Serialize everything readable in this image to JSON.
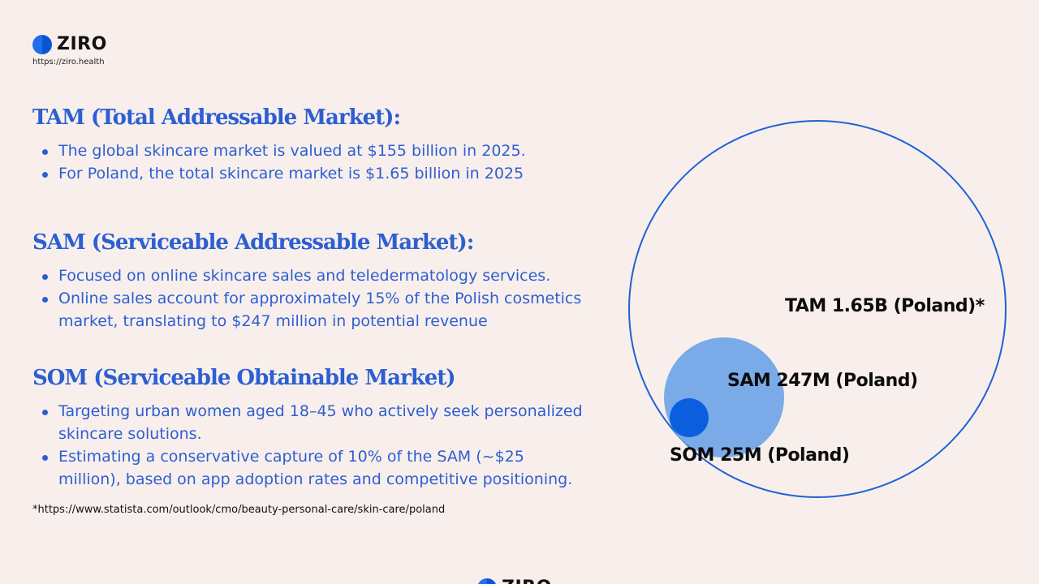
{
  "brand": {
    "name": "ZIRO",
    "url": "https://ziro.health",
    "logo_icon": "ziro-logo-icon",
    "colors": {
      "primary": "#2d5fd0",
      "circle_outline": "#1d63d3",
      "sam_fill": "#7aaae8",
      "som_fill": "#0b5fde"
    }
  },
  "sections": {
    "tam": {
      "heading": "TAM (Total Addressable Market):",
      "bullets": [
        "The global skincare market is valued at $155 billion in 2025.",
        "For Poland, the total skincare market is $1.65 billion in 2025"
      ]
    },
    "sam": {
      "heading": "SAM (Serviceable Addressable Market):",
      "bullets": [
        "Focused on online skincare sales and teledermatology services.",
        "Online sales account for approximately 15% of the Polish cosmetics market, translating to $247 million in potential revenue"
      ]
    },
    "som": {
      "heading": "SOM (Serviceable Obtainable Market)",
      "bullets": [
        "Targeting urban women aged 18–45 who actively seek personalized skincare solutions.",
        "Estimating a conservative capture of 10% of the SAM (~$25 million), based on app adoption rates and competitive positioning."
      ]
    }
  },
  "footnote": "*https://www.statista.com/outlook/cmo/beauty-personal-care/skin-care/poland",
  "diagram": {
    "tam_label": "TAM 1.65B (Poland)*",
    "sam_label": "SAM 247M (Poland)",
    "som_label": "SOM 25M (Poland)"
  }
}
